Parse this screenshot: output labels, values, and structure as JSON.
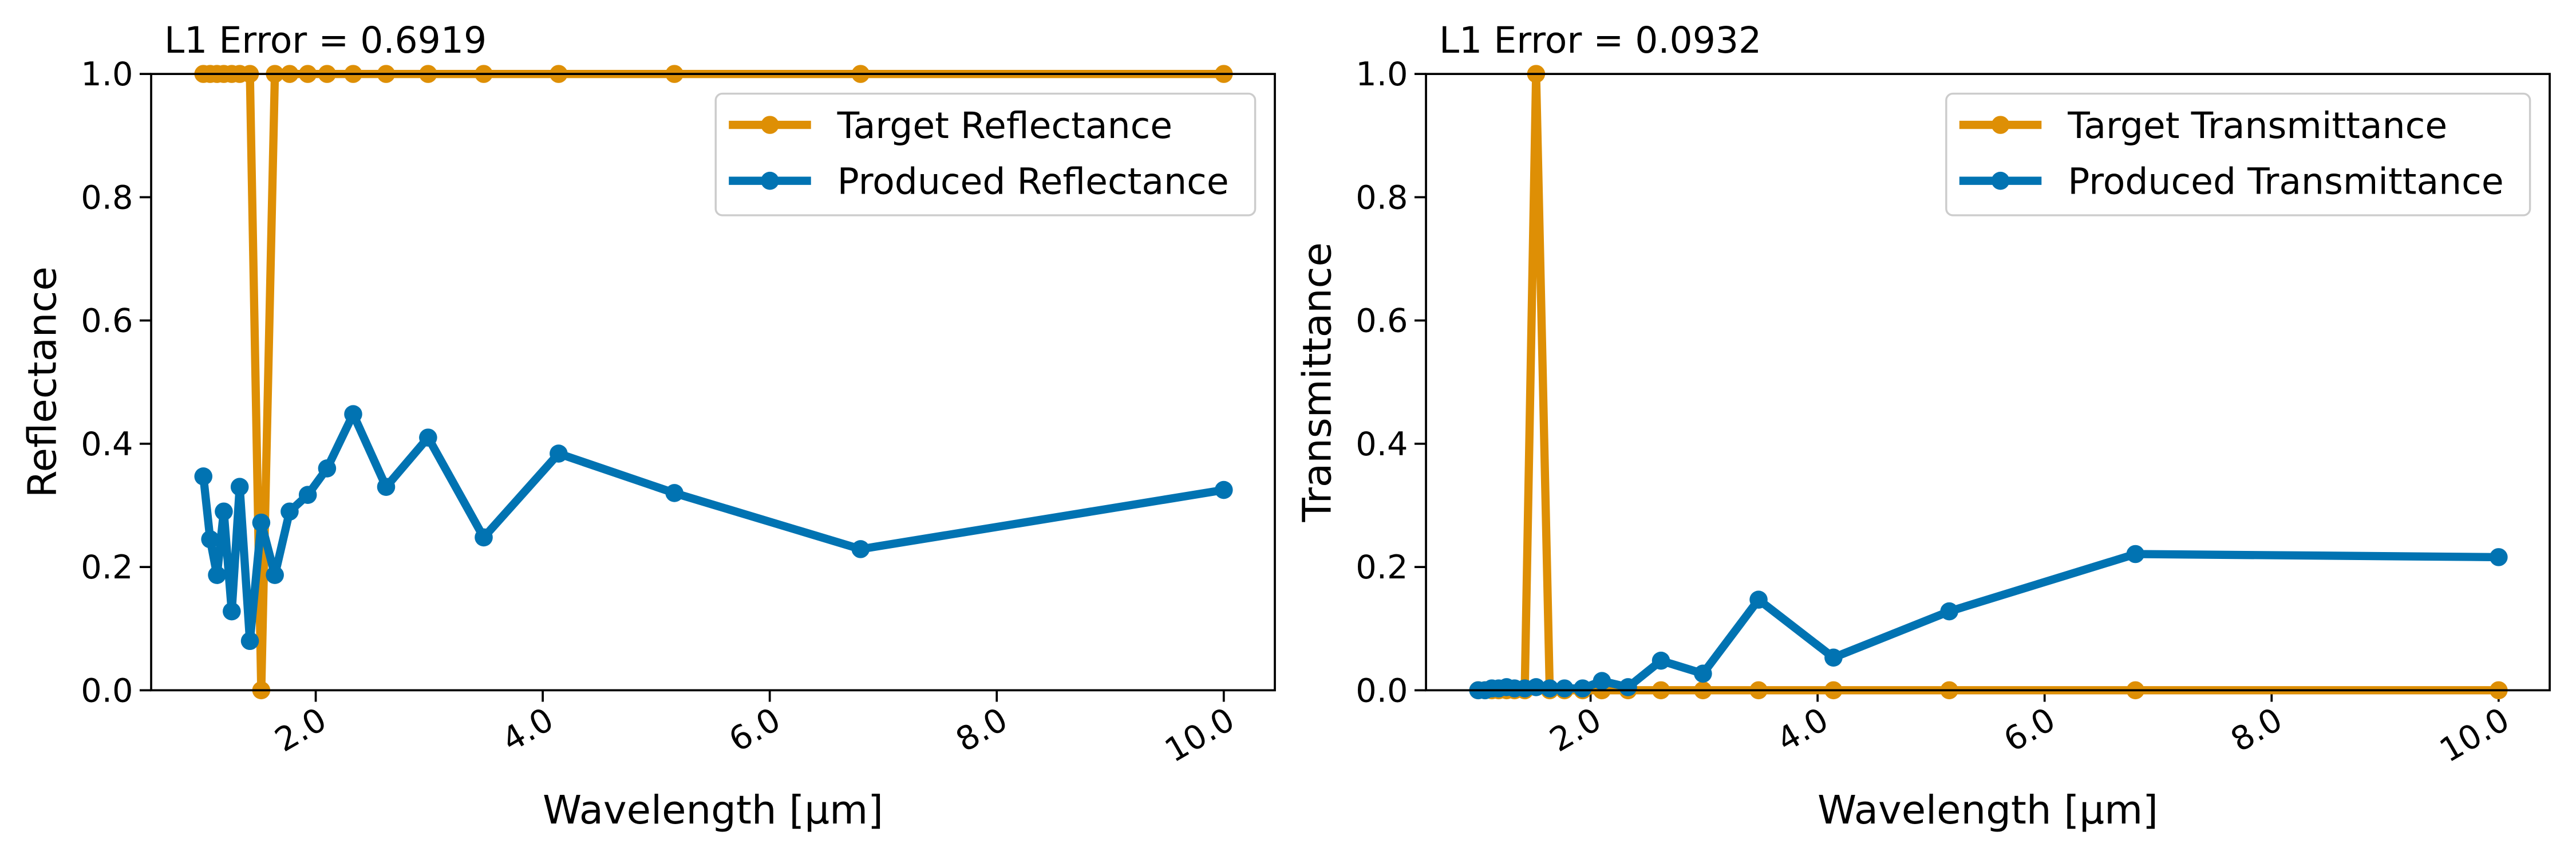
{
  "chart_data": [
    {
      "type": "line",
      "title": "L1 Error = 0.6919",
      "xlabel": "Wavelength [µm]",
      "ylabel": "Reflectance",
      "x": [
        1.01,
        1.07,
        1.13,
        1.19,
        1.26,
        1.33,
        1.42,
        1.52,
        1.64,
        1.77,
        1.93,
        2.1,
        2.33,
        2.62,
        2.99,
        3.48,
        4.14,
        5.16,
        6.8,
        10.0
      ],
      "series": [
        {
          "name": "Target Reflectance",
          "color": "#de8f05",
          "values": [
            1,
            1,
            1,
            1,
            1,
            1,
            1,
            0,
            1,
            1,
            1,
            1,
            1,
            1,
            1,
            1,
            1,
            1,
            1,
            1
          ]
        },
        {
          "name": "Produced Reflectance",
          "color": "#0173b2",
          "values": [
            0.347,
            0.245,
            0.187,
            0.29,
            0.128,
            0.33,
            0.08,
            0.272,
            0.187,
            0.29,
            0.317,
            0.36,
            0.448,
            0.33,
            0.41,
            0.248,
            0.384,
            0.32,
            0.229,
            0.325
          ]
        }
      ],
      "xlim": [
        0.55,
        10.45
      ],
      "ylim": [
        0,
        1
      ],
      "xticks": [
        {
          "value": 2,
          "label": "2.0"
        },
        {
          "value": 4,
          "label": "4.0"
        },
        {
          "value": 6,
          "label": "6.0"
        },
        {
          "value": 8,
          "label": "8.0"
        },
        {
          "value": 10,
          "label": "10.0"
        }
      ],
      "yticks": [
        {
          "value": 0,
          "label": "0.0"
        },
        {
          "value": 0.2,
          "label": "0.2"
        },
        {
          "value": 0.4,
          "label": "0.4"
        },
        {
          "value": 0.6,
          "label": "0.6"
        },
        {
          "value": 0.8,
          "label": "0.8"
        },
        {
          "value": 1,
          "label": "1.0"
        }
      ],
      "legend": "upper right",
      "grid": false
    },
    {
      "type": "line",
      "title": "L1 Error = 0.0932",
      "xlabel": "Wavelength [µm]",
      "ylabel": "Transmittance",
      "x": [
        1.01,
        1.07,
        1.13,
        1.19,
        1.26,
        1.33,
        1.42,
        1.52,
        1.64,
        1.77,
        1.93,
        2.1,
        2.33,
        2.62,
        2.99,
        3.48,
        4.14,
        5.16,
        6.8,
        10.0
      ],
      "series": [
        {
          "name": "Target Transmittance",
          "color": "#de8f05",
          "values": [
            0,
            0,
            0,
            0,
            0,
            0,
            0,
            1,
            0,
            0,
            0,
            0,
            0,
            0,
            0,
            0,
            0,
            0,
            0,
            0
          ]
        },
        {
          "name": "Produced Transmittance",
          "color": "#0173b2",
          "values": [
            0.0,
            0.0,
            0.003,
            0.003,
            0.005,
            0.003,
            0.003,
            0.005,
            0.003,
            0.003,
            0.003,
            0.015,
            0.005,
            0.048,
            0.027,
            0.147,
            0.053,
            0.128,
            0.221,
            0.216
          ]
        }
      ],
      "xlim": [
        0.55,
        10.45
      ],
      "ylim": [
        0,
        1
      ],
      "xticks": [
        {
          "value": 2,
          "label": "2.0"
        },
        {
          "value": 4,
          "label": "4.0"
        },
        {
          "value": 6,
          "label": "6.0"
        },
        {
          "value": 8,
          "label": "8.0"
        },
        {
          "value": 10,
          "label": "10.0"
        }
      ],
      "yticks": [
        {
          "value": 0,
          "label": "0.0"
        },
        {
          "value": 0.2,
          "label": "0.2"
        },
        {
          "value": 0.4,
          "label": "0.4"
        },
        {
          "value": 0.6,
          "label": "0.6"
        },
        {
          "value": 0.8,
          "label": "0.8"
        },
        {
          "value": 1,
          "label": "1.0"
        }
      ],
      "legend": "upper right",
      "grid": false
    }
  ]
}
